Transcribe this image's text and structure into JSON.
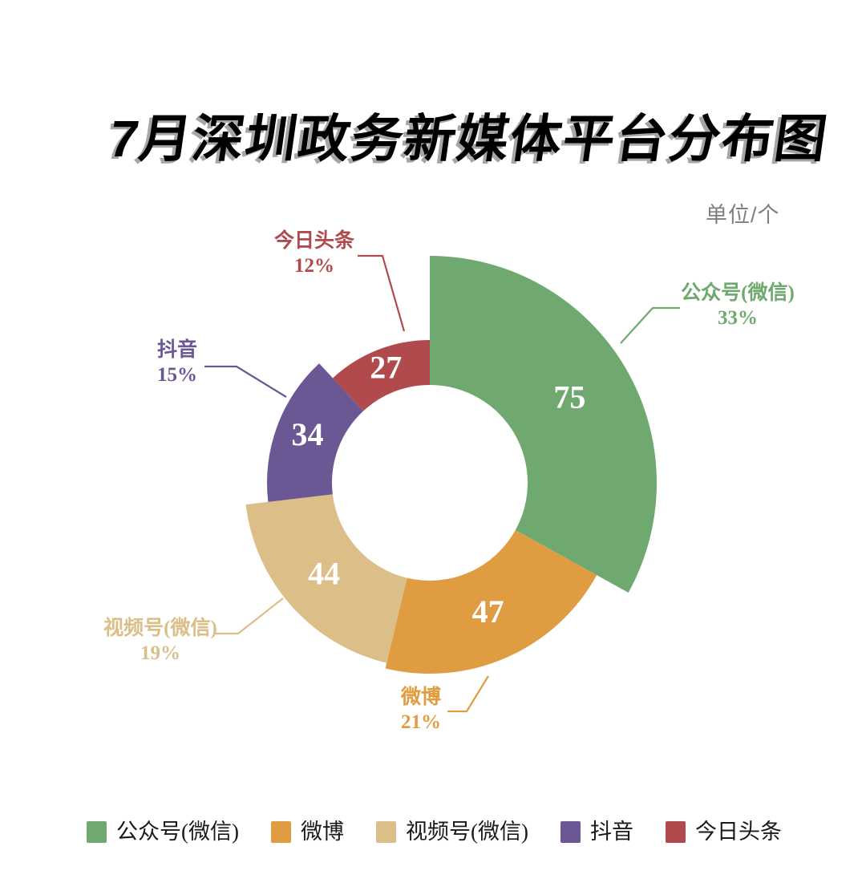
{
  "title": "7月深圳政务新媒体平台分布图",
  "unit_label": "单位/个",
  "chart_data": {
    "type": "pie",
    "subtype": "rose-donut",
    "title": "7月深圳政务新媒体平台分布图",
    "unit": "单位/个",
    "legend_position": "bottom",
    "value_label_color": "#ffffff",
    "center": [
      536,
      602
    ],
    "inner_radius": 122,
    "outer_radii": [
      283,
      238,
      231,
      203,
      178
    ],
    "start_angle_deg": 0,
    "items": [
      {
        "label": "公众号(微信)",
        "value": 75,
        "percent": "33%",
        "color": "#6FA96F"
      },
      {
        "label": "微博",
        "value": 47,
        "percent": "21%",
        "color": "#E09C40"
      },
      {
        "label": "视频号(微信)",
        "value": 44,
        "percent": "19%",
        "color": "#DBBE88"
      },
      {
        "label": "抖音",
        "value": 34,
        "percent": "15%",
        "color": "#6C5795"
      },
      {
        "label": "今日头条",
        "value": 27,
        "percent": "12%",
        "color": "#B14A4D"
      }
    ]
  }
}
